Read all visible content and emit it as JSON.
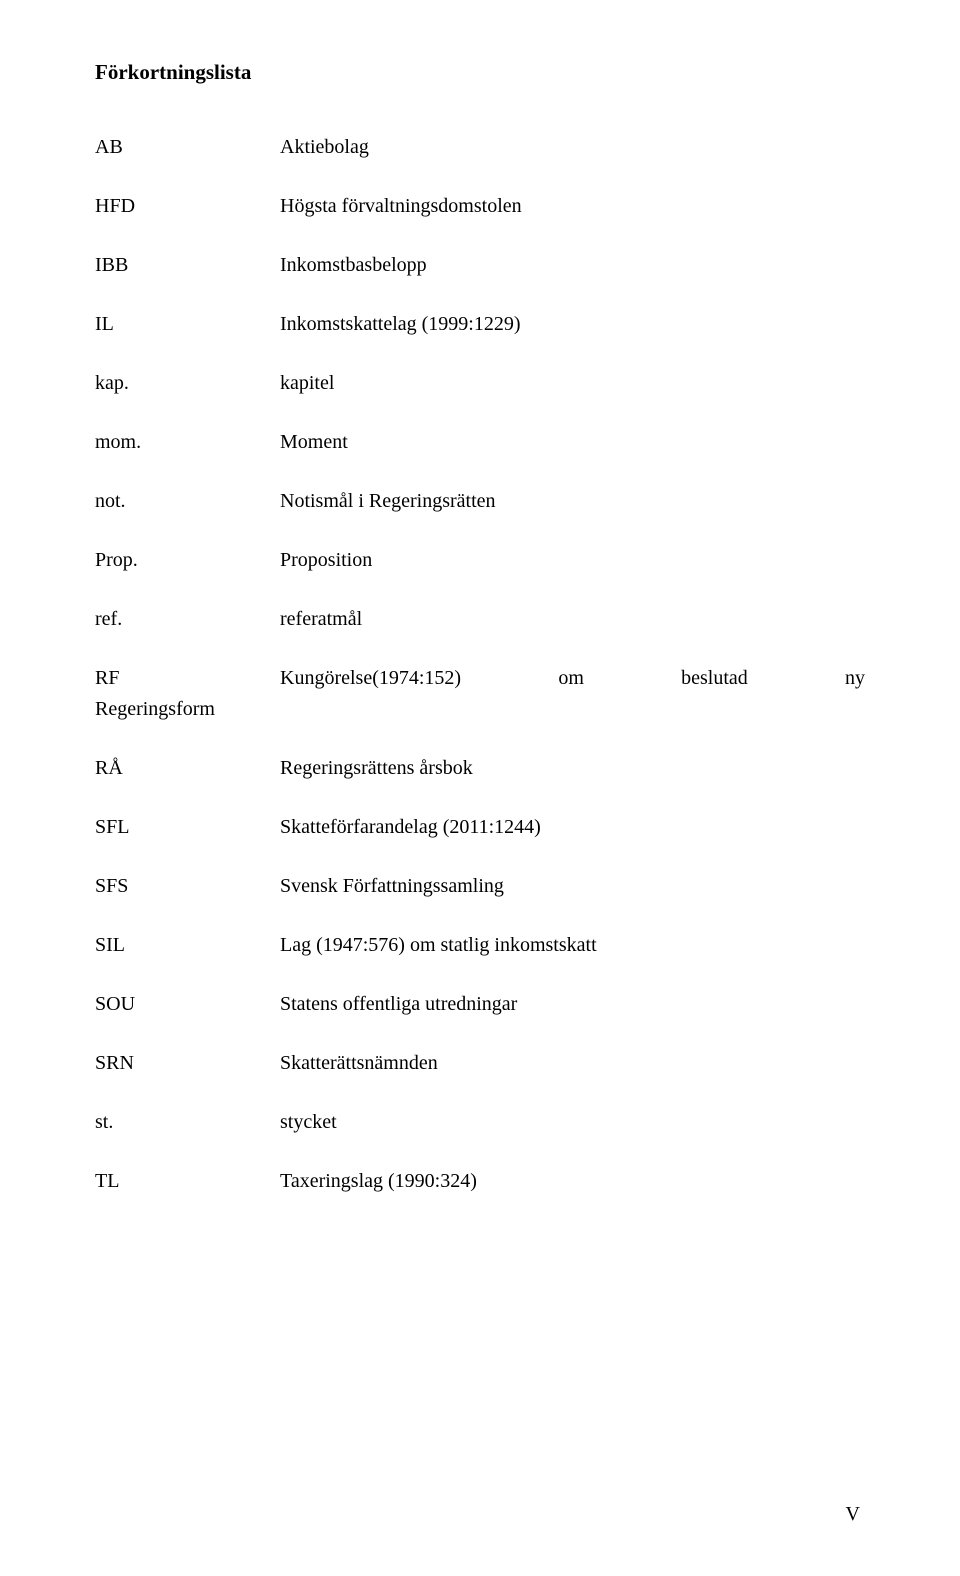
{
  "title": "Förkortningslista",
  "rows": [
    {
      "abbrev": "AB",
      "def": "Aktiebolag"
    },
    {
      "abbrev": "HFD",
      "def": "Högsta förvaltningsdomstolen"
    },
    {
      "abbrev": "IBB",
      "def": "Inkomstbasbelopp"
    },
    {
      "abbrev": "IL",
      "def": "Inkomstskattelag (1999:1229)"
    },
    {
      "abbrev": "kap.",
      "def": "kapitel"
    },
    {
      "abbrev": "mom.",
      "def": "Moment"
    },
    {
      "abbrev": "not.",
      "def": "Notismål i Regeringsrätten"
    },
    {
      "abbrev": "Prop.",
      "def": "Proposition"
    },
    {
      "abbrev": "ref.",
      "def": "referatmål"
    }
  ],
  "rf": {
    "abbrev1": "RF",
    "abbrev2": "Regeringsform",
    "w1": "Kungörelse(1974:152)",
    "w2": "om",
    "w3": "beslutad",
    "w4": "ny"
  },
  "rows2": [
    {
      "abbrev": "RÅ",
      "def": "Regeringsrättens årsbok"
    },
    {
      "abbrev": "SFL",
      "def": "Skatteförfarandelag (2011:1244)"
    },
    {
      "abbrev": "SFS",
      "def": "Svensk Författningssamling"
    },
    {
      "abbrev": "SIL",
      "def": "Lag (1947:576) om statlig inkomstskatt"
    },
    {
      "abbrev": "SOU",
      "def": "Statens offentliga utredningar"
    },
    {
      "abbrev": "SRN",
      "def": "Skatterättsnämnden"
    },
    {
      "abbrev": "st.",
      "def": "stycket"
    },
    {
      "abbrev": "TL",
      "def": "Taxeringslag (1990:324)"
    }
  ],
  "page_number": "V"
}
